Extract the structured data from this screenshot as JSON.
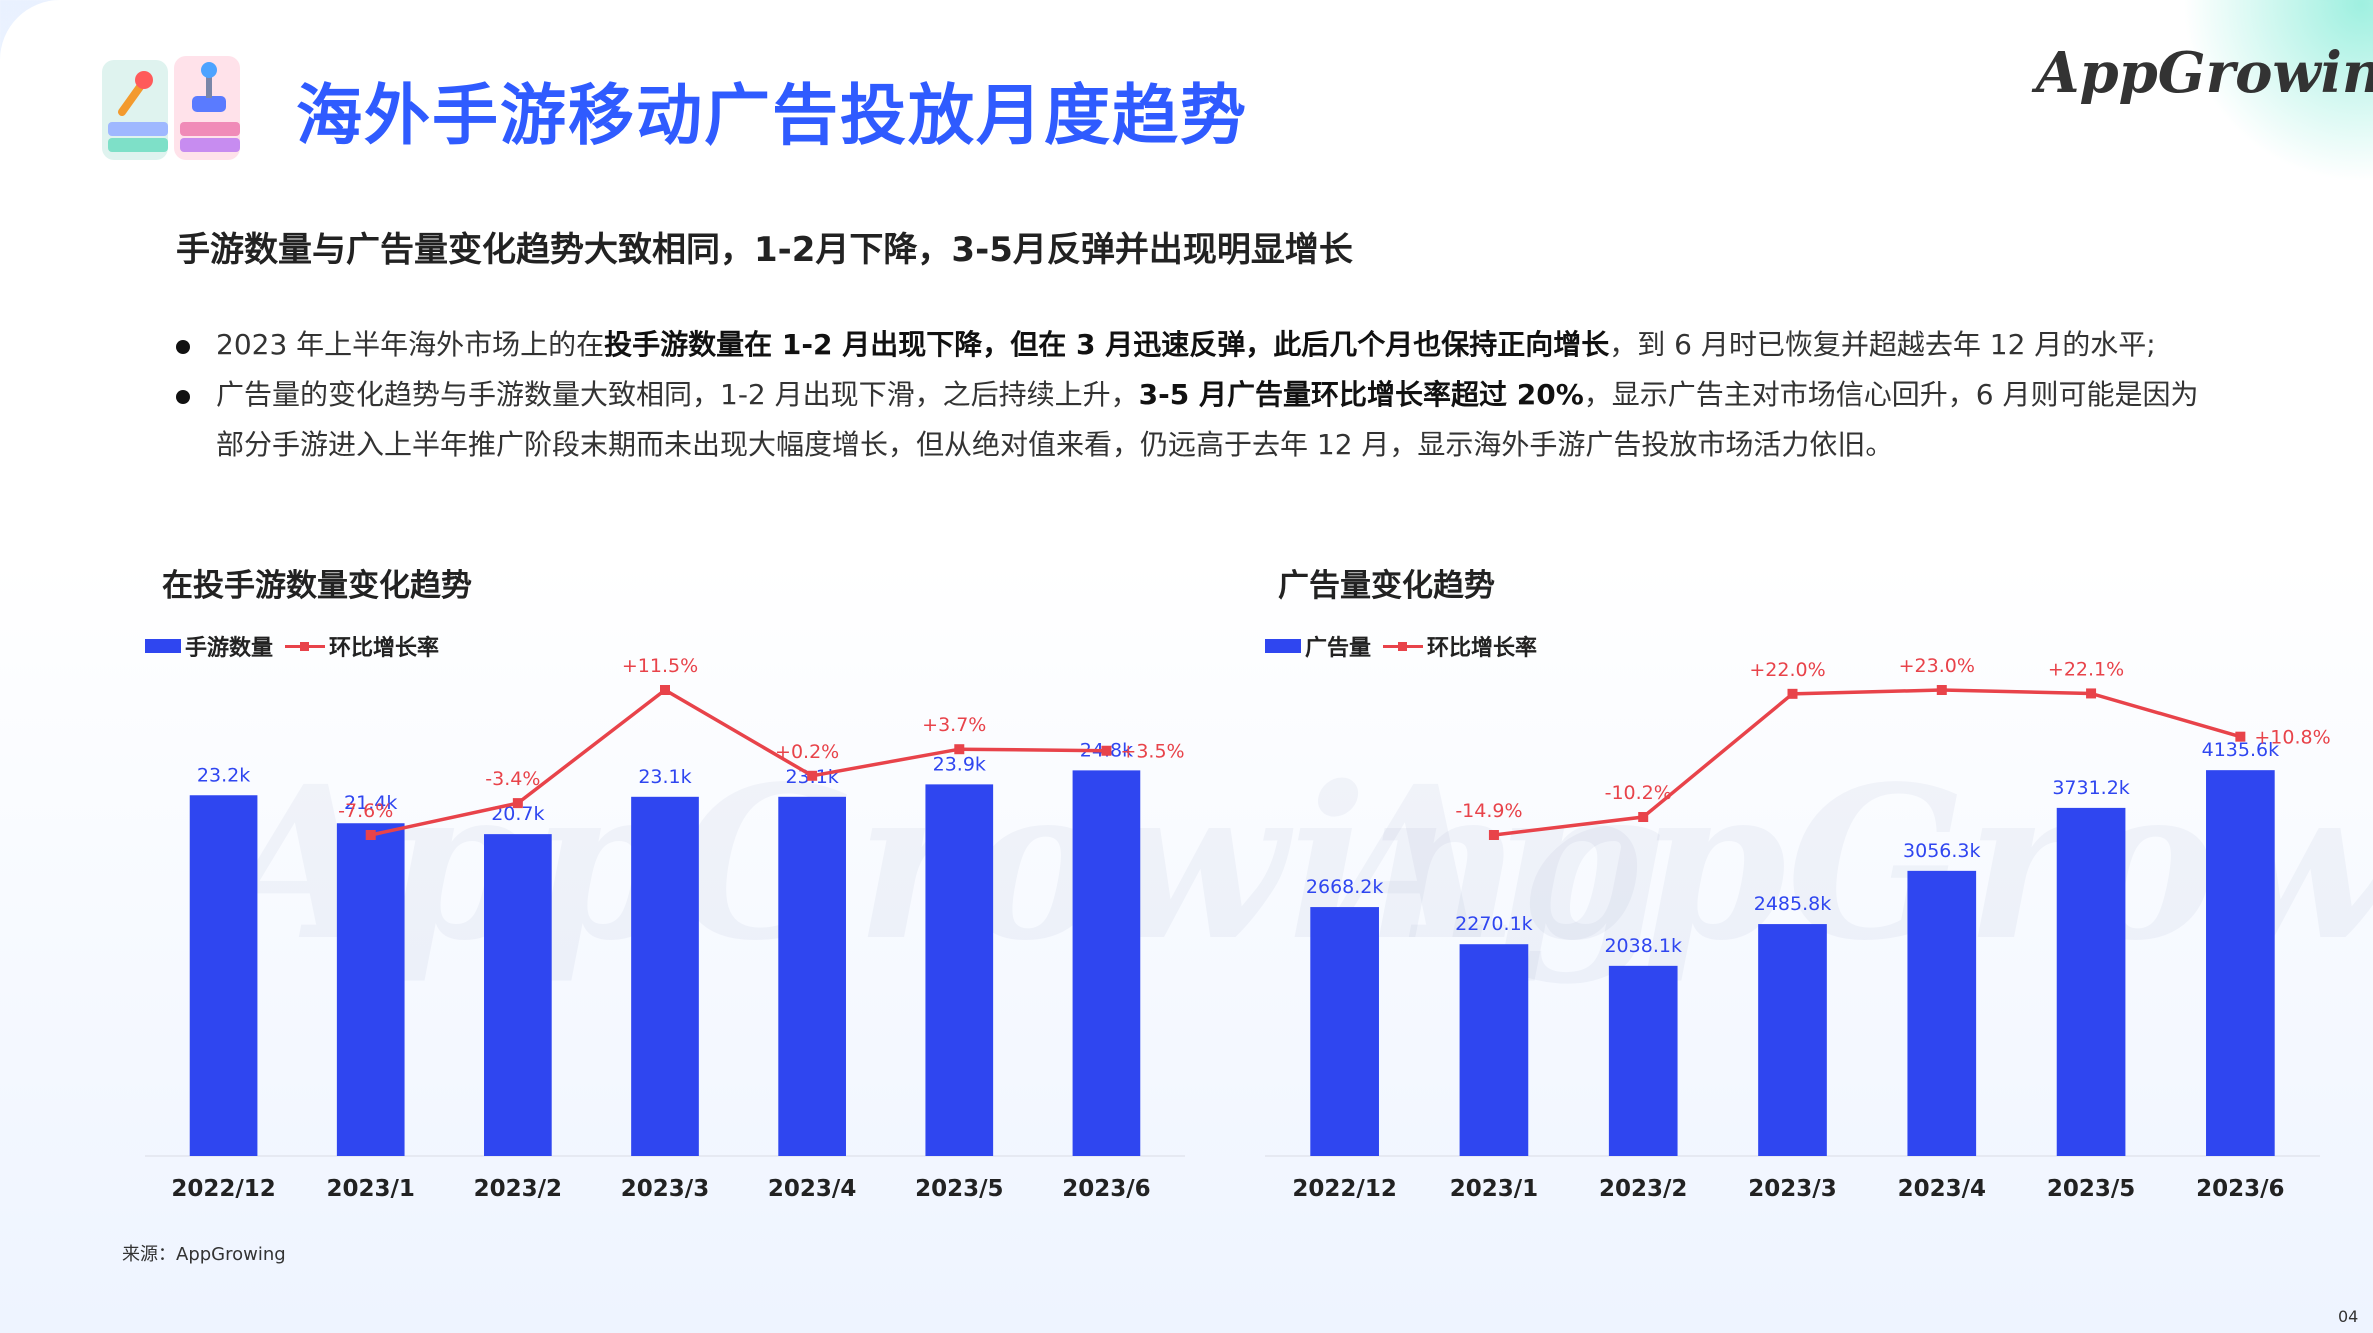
{
  "header": {
    "title": "海外手游移动广告投放月度趋势",
    "logo_text": "AppGrowing"
  },
  "subtitle": "手游数量与广告量变化趋势大致相同，1-2月下降，3-5月反弹并出现明显增长",
  "bullets": [
    {
      "parts": [
        {
          "text": "2023 年上半年海外市场上的在",
          "bold": false
        },
        {
          "text": "投手游数量在 1-2 月出现下降，但在 3 月迅速反弹，此后几个月也保持正向增长",
          "bold": true
        },
        {
          "text": "，到 6 月时已恢复并超越去年 12 月的水平;",
          "bold": false
        }
      ]
    },
    {
      "parts": [
        {
          "text": "广告量的变化趋势与手游数量大致相同，1-2 月出现下滑，之后持续上升，",
          "bold": false
        },
        {
          "text": "3-5 月广告量环比增长率超过 20%",
          "bold": true
        },
        {
          "text": "，显示广告主对市场信心回升，6 月则可能是因为部分手游进入上半年推广阶段末期而未出现大幅度增长，但从绝对值来看，仍远高于去年 12 月，显示海外手游广告投放市场活力依旧。",
          "bold": false
        }
      ]
    }
  ],
  "source": "来源：AppGrowing",
  "page_number": "04",
  "chart_data": [
    {
      "type": "bar",
      "title": "在投手游数量变化趋势",
      "categories": [
        "2022/12",
        "2023/1",
        "2023/2",
        "2023/3",
        "2023/4",
        "2023/5",
        "2023/6"
      ],
      "series": [
        {
          "name": "手游数量",
          "type": "bar",
          "color": "#2f46f0",
          "values": [
            23.2,
            21.4,
            20.7,
            23.1,
            23.1,
            23.9,
            24.8
          ],
          "labels": [
            "23.2k",
            "21.4k",
            "20.7k",
            "23.1k",
            "23.1k",
            "23.9k",
            "24.8k"
          ]
        },
        {
          "name": "环比增长率",
          "type": "line",
          "color": "#e8434a",
          "values": [
            null,
            -7.6,
            -3.4,
            11.5,
            0.2,
            3.7,
            3.5
          ],
          "labels": [
            "",
            "-7.6%",
            "-3.4%",
            "+11.5%",
            "+0.2%",
            "+3.7%",
            "+3.5%"
          ]
        }
      ],
      "legend_position": "top-left",
      "ylim_bar": [
        0,
        30
      ],
      "ylim_line": [
        -15,
        15
      ],
      "grid": false
    },
    {
      "type": "bar",
      "title": "广告量变化趋势",
      "categories": [
        "2022/12",
        "2023/1",
        "2023/2",
        "2023/3",
        "2023/4",
        "2023/5",
        "2023/6"
      ],
      "series": [
        {
          "name": "广告量",
          "type": "bar",
          "color": "#2f46f0",
          "values": [
            2668.2,
            2270.1,
            2038.1,
            2485.8,
            3056.3,
            3731.2,
            4135.6
          ],
          "labels": [
            "2668.2k",
            "2270.1k",
            "2038.1k",
            "2485.8k",
            "3056.3k",
            "3731.2k",
            "4135.6k"
          ]
        },
        {
          "name": "环比增长率",
          "type": "line",
          "color": "#e8434a",
          "values": [
            null,
            -14.9,
            -10.2,
            22.0,
            23.0,
            22.1,
            10.8
          ],
          "labels": [
            "",
            "-14.9%",
            "-10.2%",
            "+22.0%",
            "+23.0%",
            "+22.1%",
            "+10.8%"
          ]
        }
      ],
      "legend_position": "top-left",
      "ylim_bar": [
        0,
        5000
      ],
      "ylim_line": [
        -30,
        30
      ],
      "grid": false
    }
  ]
}
